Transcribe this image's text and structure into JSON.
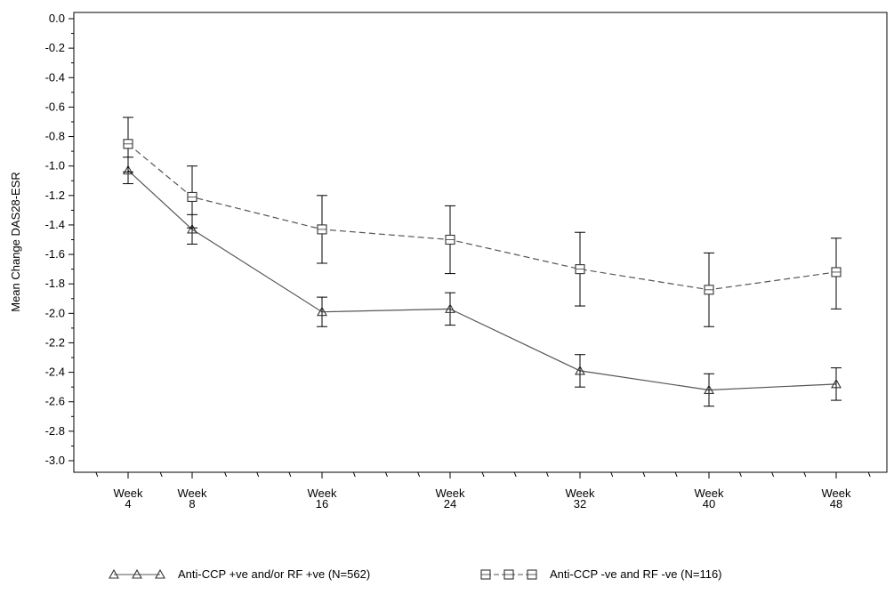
{
  "chart_data": {
    "type": "line",
    "ylabel": "Mean Change DAS28-ESR",
    "xlabel": "",
    "ylim": [
      -3.0,
      0.0
    ],
    "yticks": [
      "0.0",
      "-0.2",
      "-0.4",
      "-0.6",
      "-0.8",
      "-1.0",
      "-1.2",
      "-1.4",
      "-1.6",
      "-1.8",
      "-2.0",
      "-2.2",
      "-2.4",
      "-2.6",
      "-2.8",
      "-3.0"
    ],
    "x": [
      4,
      8,
      16,
      24,
      32,
      40,
      48
    ],
    "xtick_labels": [
      {
        "week": 4,
        "line1": "Week",
        "line2": "4"
      },
      {
        "week": 8,
        "line1": "Week",
        "line2": "8"
      },
      {
        "week": 16,
        "line1": "Week",
        "line2": "16"
      },
      {
        "week": 24,
        "line1": "Week",
        "line2": "24"
      },
      {
        "week": 32,
        "line1": "Week",
        "line2": "32"
      },
      {
        "week": 40,
        "line1": "Week",
        "line2": "40"
      },
      {
        "week": 48,
        "line1": "Week",
        "line2": "48"
      }
    ],
    "series": [
      {
        "name": "Anti-CCP +ve and/or RF +ve (N=562)",
        "marker": "triangle",
        "line_style": "solid",
        "values": [
          -1.03,
          -1.43,
          -1.99,
          -1.97,
          -2.39,
          -2.52,
          -2.48
        ],
        "lower": [
          -1.12,
          -1.53,
          -2.09,
          -2.08,
          -2.5,
          -2.63,
          -2.59
        ],
        "upper": [
          -0.94,
          -1.33,
          -1.89,
          -1.86,
          -2.28,
          -2.41,
          -2.37
        ]
      },
      {
        "name": "Anti-CCP -ve and RF -ve (N=116)",
        "marker": "square",
        "line_style": "dashed",
        "values": [
          -0.85,
          -1.21,
          -1.43,
          -1.5,
          -1.7,
          -1.84,
          -1.72
        ],
        "lower": [
          -1.04,
          -1.42,
          -1.66,
          -1.73,
          -1.95,
          -2.09,
          -1.97
        ],
        "upper": [
          -0.67,
          -1.0,
          -1.2,
          -1.27,
          -1.45,
          -1.59,
          -1.49
        ]
      }
    ],
    "legend_position": "bottom",
    "grid": false,
    "line_color": "#555555",
    "marker_color": "#333333"
  }
}
